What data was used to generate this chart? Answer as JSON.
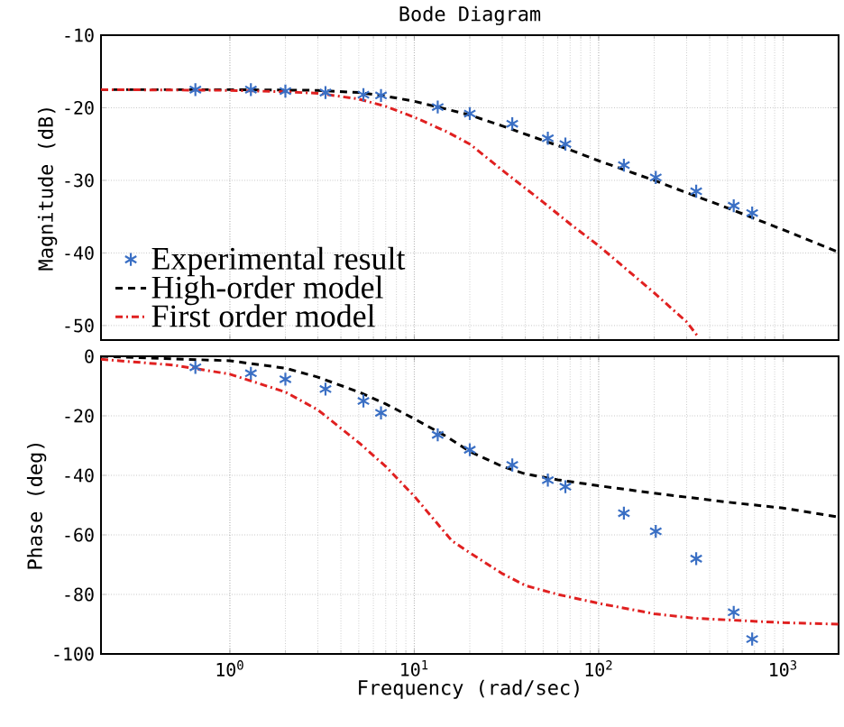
{
  "chart_data": [
    {
      "type": "line",
      "title": "Bode Diagram",
      "ylabel": "Magnitude (dB)",
      "log": "x",
      "grid": true,
      "legend": "bottom left",
      "tick_labels": "y",
      "xlim": [
        0.2,
        2000
      ],
      "ylim": [
        -52,
        -10
      ],
      "xticks": [
        {
          "value": 1,
          "label": null
        },
        {
          "value": 10,
          "label": null
        },
        {
          "value": 100,
          "label": null
        },
        {
          "value": 1000,
          "label": null
        }
      ],
      "yticks": [
        -10,
        -20,
        -30,
        -40,
        -50
      ],
      "series": [
        {
          "name": "Experimental result",
          "type": "scatter",
          "marker": "cross",
          "color": "#3a6fc4",
          "x": [
            0.65,
            1.3,
            2.0,
            3.3,
            5.3,
            6.6,
            13.4,
            20,
            34,
            53,
            66,
            137,
            204,
            338,
            540,
            680
          ],
          "values": [
            -17.5,
            -17.5,
            -17.7,
            -17.9,
            -18.2,
            -18.3,
            -19.9,
            -20.8,
            -22.2,
            -24.2,
            -25.0,
            -27.9,
            -29.6,
            -31.5,
            -33.5,
            -34.5
          ]
        },
        {
          "name": "High-order model",
          "line_style": "dashed",
          "color": "#000000",
          "x": [
            0.2,
            1,
            3,
            5,
            7,
            10,
            15,
            20,
            30,
            50,
            70,
            100,
            200,
            300,
            500,
            1000,
            2000
          ],
          "values": [
            -17.5,
            -17.5,
            -17.6,
            -17.9,
            -18.4,
            -19.1,
            -20.2,
            -21.0,
            -22.5,
            -24.5,
            -25.8,
            -27.3,
            -30.0,
            -31.7,
            -33.8,
            -36.8,
            -39.9
          ]
        },
        {
          "name": "First order model",
          "line_style": "dashdot",
          "color": "#e02020",
          "x": [
            0.2,
            1,
            2,
            3,
            5,
            7,
            10,
            15,
            20,
            30,
            50,
            70,
            100,
            200,
            300,
            350
          ],
          "values": [
            -17.5,
            -17.6,
            -17.8,
            -18.0,
            -18.8,
            -19.8,
            -21.3,
            -23.3,
            -25.0,
            -28.6,
            -33.0,
            -36.0,
            -39.0,
            -45.5,
            -49.5,
            -51.7
          ]
        }
      ]
    },
    {
      "type": "line",
      "xlabel": "Frequency (rad/sec)",
      "ylabel": "Phase (deg)",
      "log": "x",
      "grid": true,
      "xlim": [
        0.2,
        2000
      ],
      "ylim": [
        -100,
        0
      ],
      "xticks": [
        {
          "value": 1,
          "label": "10$^{0}$"
        },
        {
          "value": 10,
          "label": "10$^{1}$"
        },
        {
          "value": 100,
          "label": "10$^{2}$"
        },
        {
          "value": 1000,
          "label": "10$^{3}$"
        }
      ],
      "yticks": [
        0,
        -20,
        -40,
        -60,
        -80,
        -100
      ],
      "series": [
        {
          "type": "scatter",
          "marker": "cross",
          "color": "#3a6fc4",
          "x": [
            0.65,
            1.3,
            2.0,
            3.3,
            5.3,
            6.6,
            13.4,
            20,
            34,
            53,
            66,
            137,
            204,
            338,
            540,
            680
          ],
          "values": [
            -3.7,
            -5.7,
            -7.7,
            -11,
            -15,
            -19,
            -26.4,
            -31.4,
            -36.5,
            -41.6,
            -43.8,
            -52.7,
            -58.8,
            -68,
            -86,
            -95
          ]
        },
        {
          "line_style": "dashed",
          "color": "#000000",
          "x": [
            0.2,
            1,
            2,
            3,
            5,
            7,
            10,
            15,
            20,
            30,
            40,
            60,
            100,
            200,
            500,
            1000,
            2000
          ],
          "values": [
            0,
            -1.5,
            -4,
            -7,
            -12,
            -16,
            -21,
            -27,
            -32,
            -37,
            -39.5,
            -41.5,
            -43.5,
            -46,
            -49,
            -51,
            -54
          ]
        },
        {
          "line_style": "dashdot",
          "color": "#e02020",
          "x": [
            0.2,
            0.5,
            1,
            2,
            3,
            5,
            7,
            10,
            16,
            20,
            30,
            40,
            60,
            100,
            200,
            330,
            1000,
            2000
          ],
          "values": [
            -1,
            -3,
            -6,
            -12,
            -18,
            -29,
            -37,
            -47,
            -62,
            -66,
            -73,
            -77,
            -80,
            -83,
            -86.5,
            -88,
            -89.5,
            -90
          ]
        }
      ]
    }
  ]
}
